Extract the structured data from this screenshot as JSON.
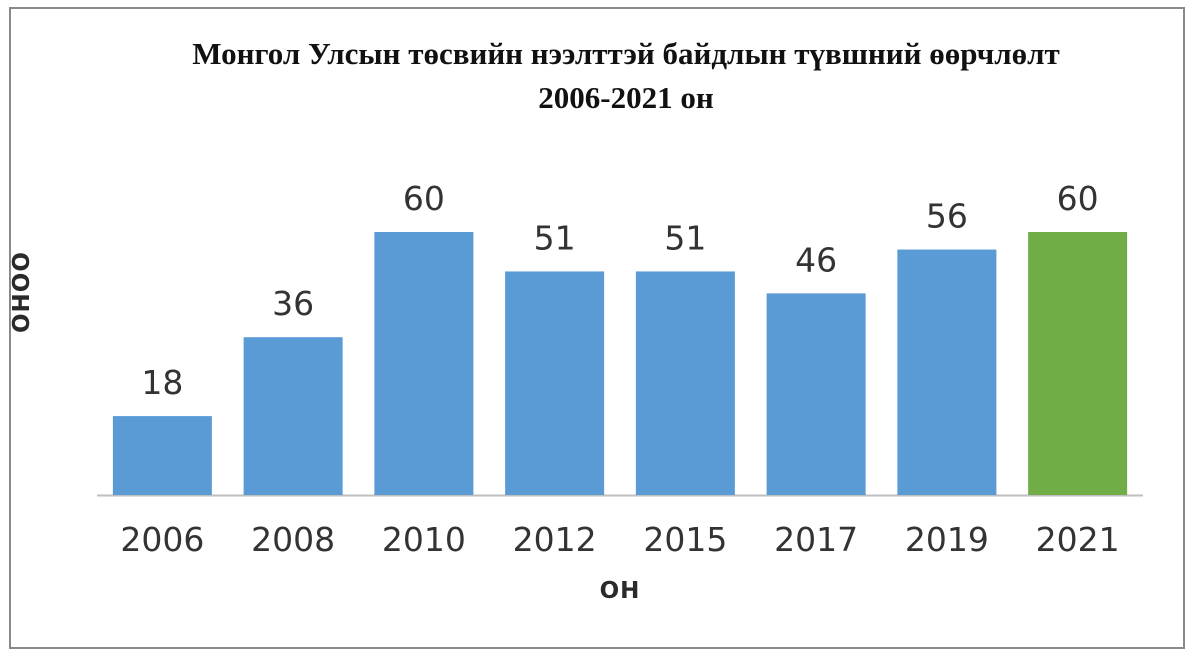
{
  "chart_data": {
    "type": "bar",
    "title": "Монгол Улсын төсвийн нээлттэй байдлын түвшний өөрчлөлт",
    "subtitle": "2006-2021 он",
    "xlabel": "ОН",
    "ylabel": "ОНОО",
    "categories": [
      "2006",
      "2008",
      "2010",
      "2012",
      "2015",
      "2017",
      "2019",
      "2021"
    ],
    "values": [
      18,
      36,
      60,
      51,
      51,
      46,
      56,
      60
    ],
    "ylim": [
      0,
      60
    ],
    "grid": false,
    "colors": {
      "default": "#5b9bd5",
      "highlight": "#70ad47",
      "highlight_category": "2021",
      "axis": "#bfbfbf",
      "label": "#333333"
    }
  }
}
